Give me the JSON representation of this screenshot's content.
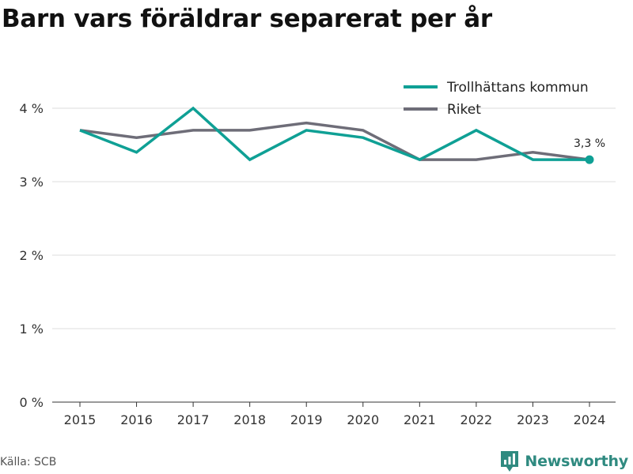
{
  "title": "Barn vars föräldrar separerat per år",
  "footer": {
    "source": "Källa: SCB",
    "brand": "Newsworthy",
    "brand_icon": "newsworthy-logo-icon"
  },
  "colors": {
    "trollhattan": "#0fa095",
    "riket": "#6e6d78",
    "grid": "#dddddd",
    "axis": "#333333",
    "brand": "#2f8a80"
  },
  "chart_data": {
    "type": "line",
    "title": "Barn vars föräldrar separerat per år",
    "x": [
      2015,
      2016,
      2017,
      2018,
      2019,
      2020,
      2021,
      2022,
      2023,
      2024
    ],
    "x_tick_labels": [
      "2015",
      "2016",
      "2017",
      "2018",
      "2019",
      "2020",
      "2021",
      "2022",
      "2023",
      "2024"
    ],
    "y_ticks": [
      0,
      1,
      2,
      3,
      4
    ],
    "y_tick_labels": [
      "0 %",
      "1 %",
      "2 %",
      "3 %",
      "4 %"
    ],
    "ylim": [
      0,
      4.2
    ],
    "grid": "horizontal",
    "legend_position": "top-right",
    "series": [
      {
        "name": "Trollhättans kommun",
        "key": "trollhattan",
        "values": [
          3.7,
          3.4,
          4.0,
          3.3,
          3.7,
          3.6,
          3.3,
          3.7,
          3.3,
          3.3
        ]
      },
      {
        "name": "Riket",
        "key": "riket",
        "values": [
          3.7,
          3.6,
          3.7,
          3.7,
          3.8,
          3.7,
          3.3,
          3.3,
          3.4,
          3.3
        ]
      }
    ],
    "annotation": {
      "series": "trollhattan",
      "x": 2024,
      "y": 3.3,
      "label": "3,3 %"
    }
  }
}
